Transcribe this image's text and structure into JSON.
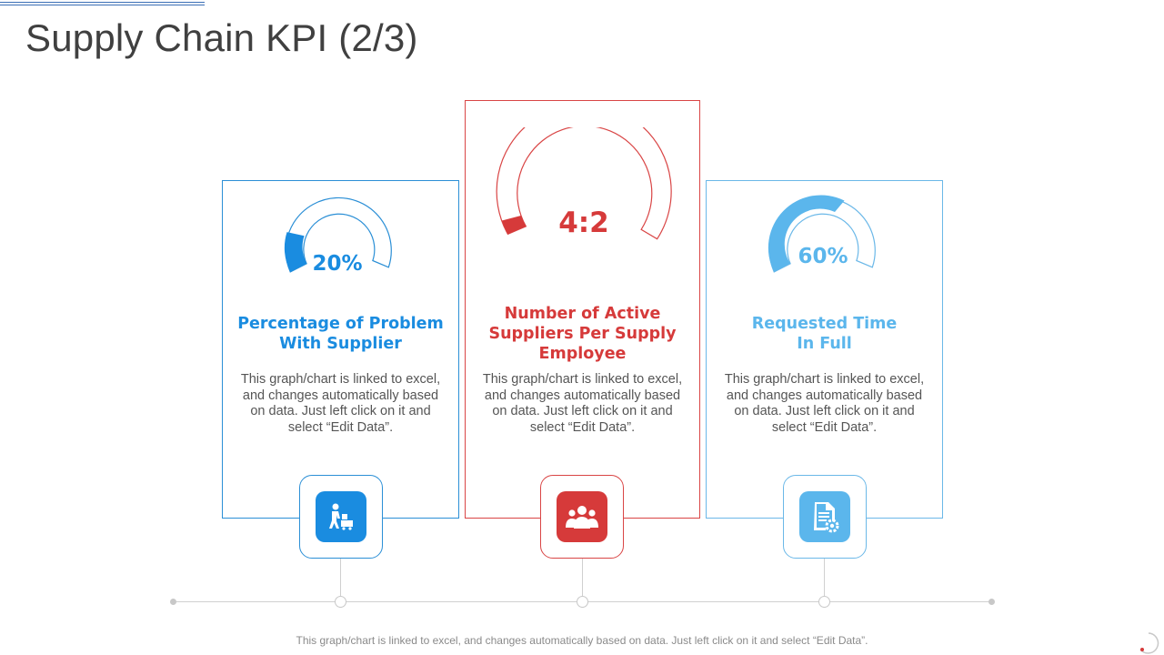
{
  "page": {
    "title": "Supply Chain KPI (2/3)"
  },
  "colors": {
    "blue": "#1a8ce0",
    "red": "#d63a3a",
    "light_blue": "#5bb6ec",
    "text_gray": "#555555"
  },
  "kpis": [
    {
      "value": "20%",
      "fill_fraction": 0.2,
      "title_line1": "Percentage of Problem",
      "title_line2": "With Supplier",
      "desc_lines": [
        "This graph/chart is linked to excel,",
        "and changes automatically based",
        "on data. Just left click on it and",
        "select “Edit Data”."
      ],
      "icon": "worker-cart-icon"
    },
    {
      "value": "4:2",
      "title_line1": "Number of Active",
      "title_line2": "Suppliers Per Supply",
      "title_line3": "Employee",
      "desc_lines": [
        "This graph/chart is linked to excel,",
        "and changes automatically based",
        "on data. Just left click on it and",
        "select “Edit Data”."
      ],
      "icon": "team-icon"
    },
    {
      "value": "60%",
      "fill_fraction": 0.6,
      "title_line1": "Requested Time",
      "title_line2": "In Full",
      "desc_lines": [
        "This graph/chart is linked to excel,",
        "and changes automatically based",
        "on data. Just left click on it and",
        "select “Edit Data”."
      ],
      "icon": "document-gear-icon"
    }
  ],
  "footer": {
    "note": "This graph/chart is linked to excel, and changes automatically based on data. Just left click on it and select “Edit Data”."
  }
}
